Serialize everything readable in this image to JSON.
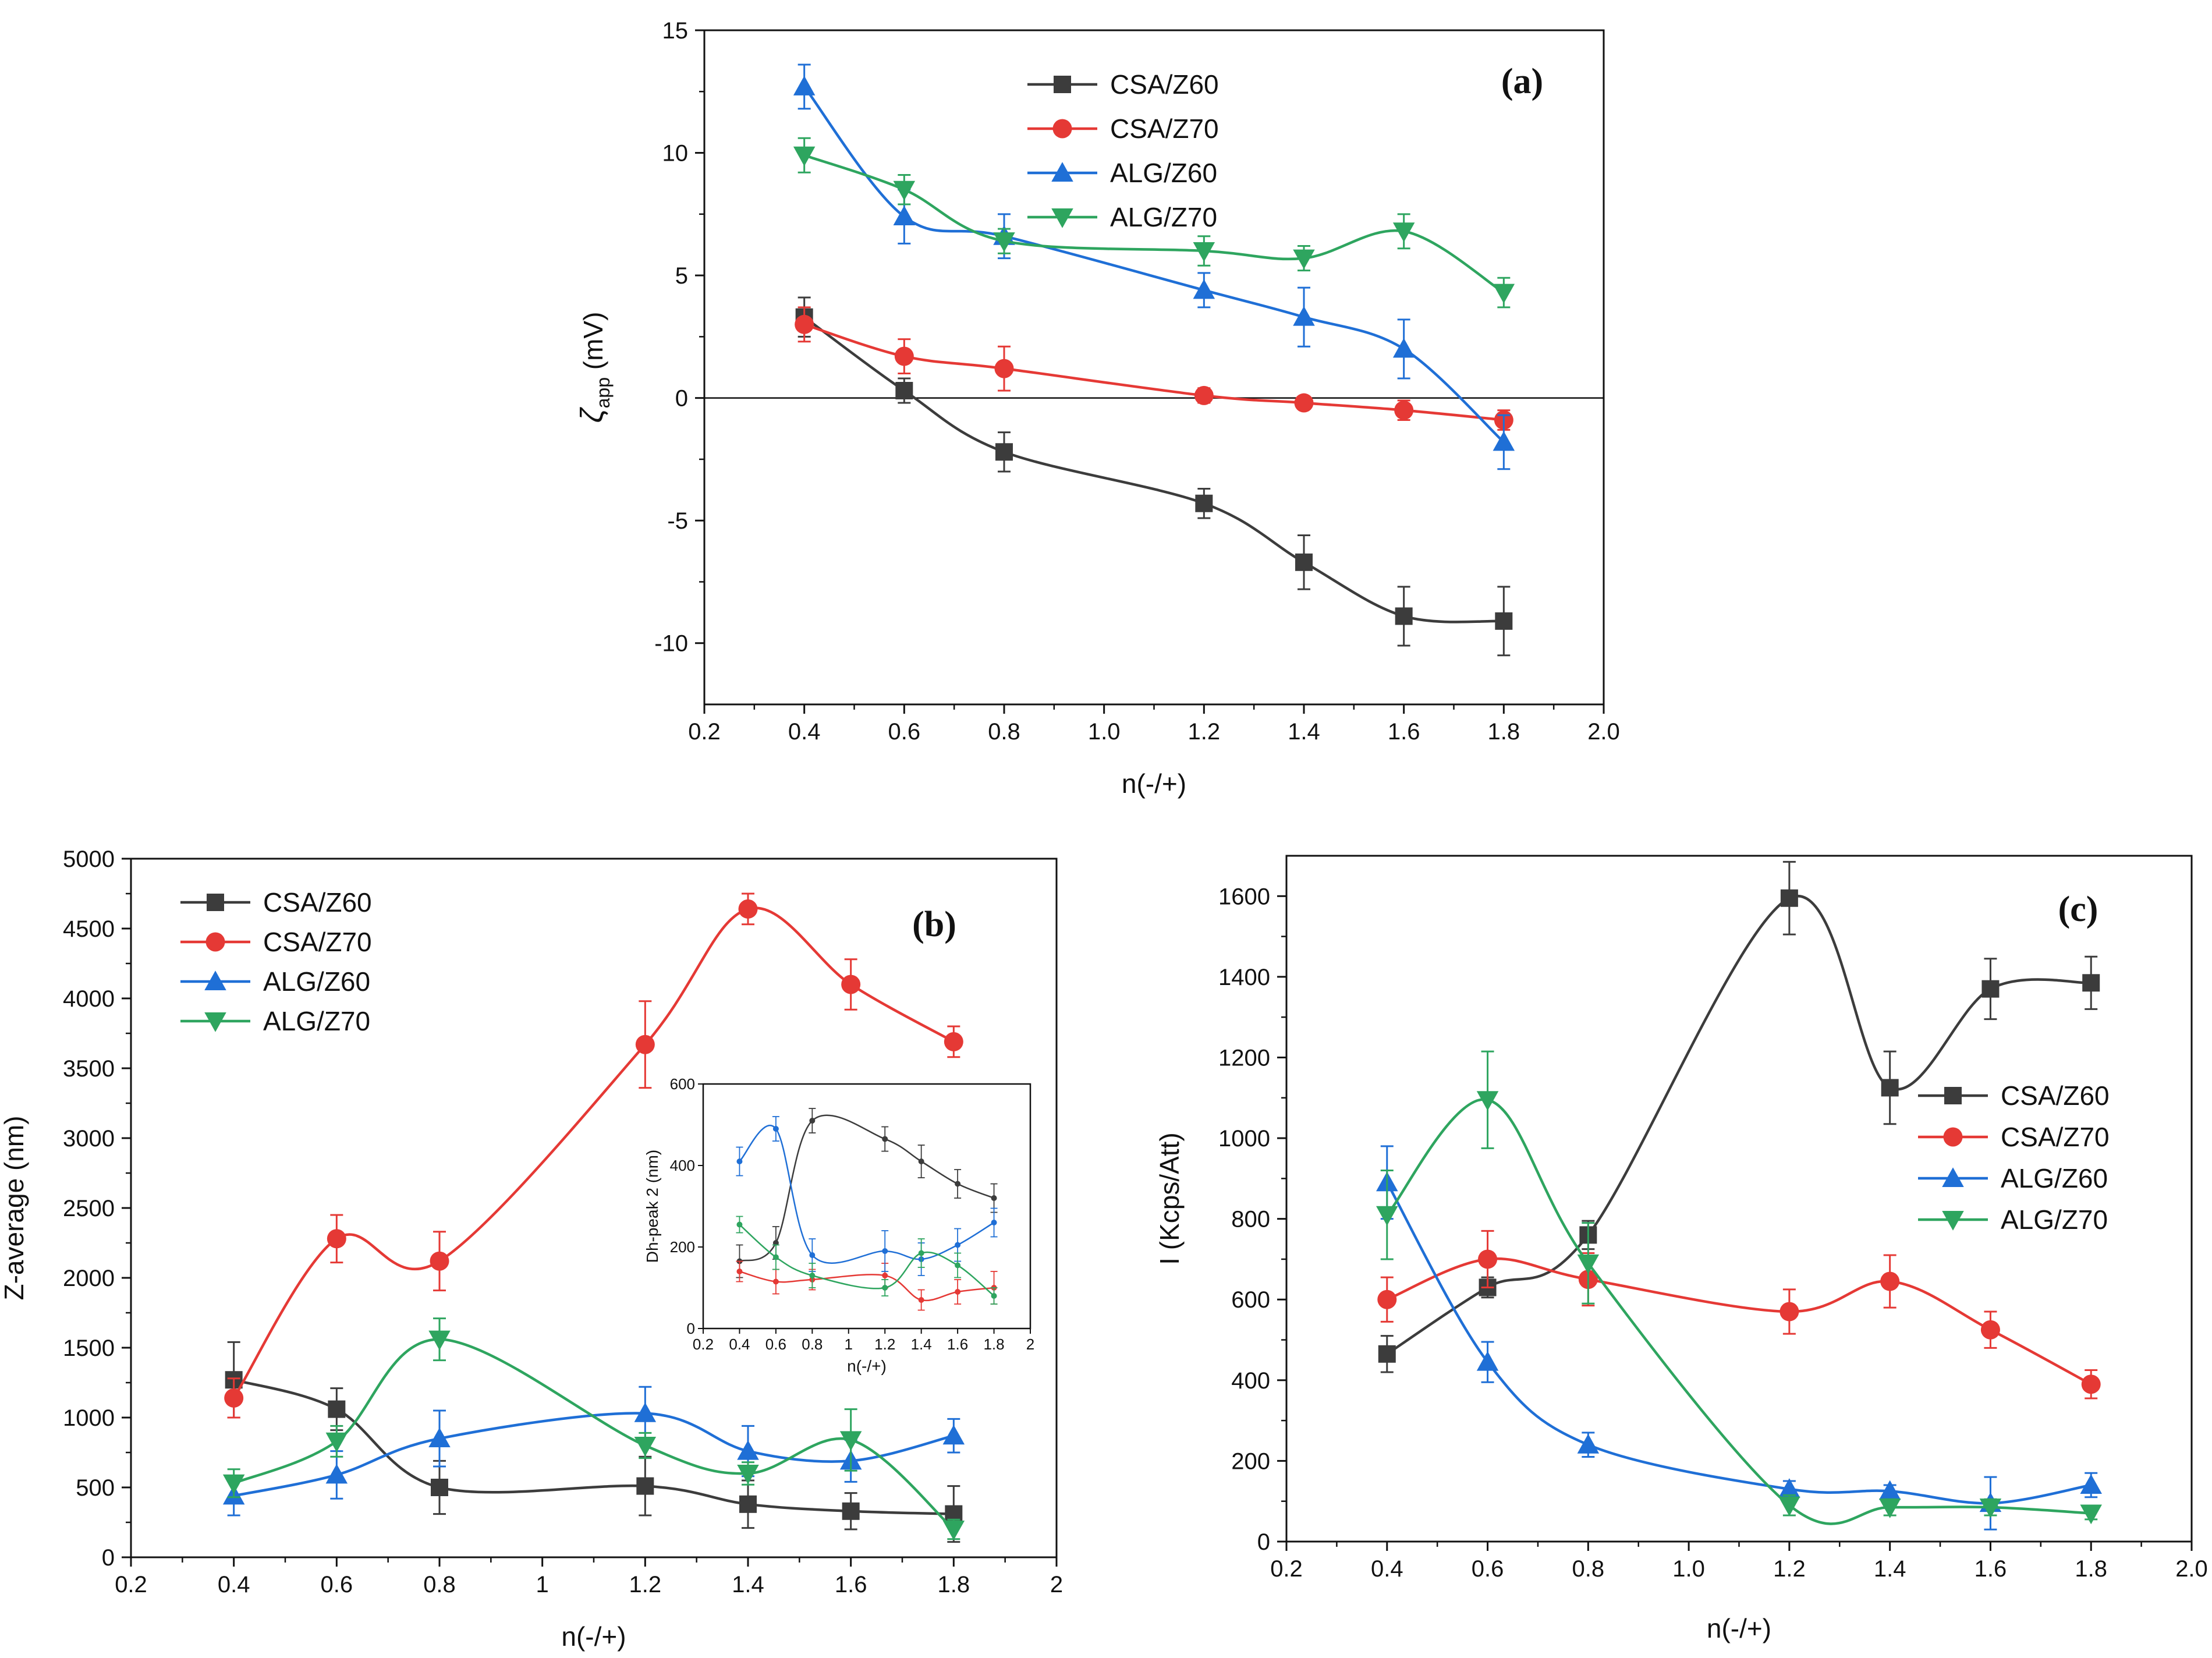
{
  "figure_colors": {
    "black": "#3c3c3c",
    "red": "#e53935",
    "blue": "#1f6fd6",
    "green": "#2ea55f"
  },
  "chart_data": [
    {
      "id": "a",
      "type": "line",
      "panel_label": "a",
      "xlabel": "n(-/+)",
      "ylabel_main": "ζ",
      "ylabel_sub": "app",
      "ylabel_unit": " (mV)",
      "xlim": [
        0.2,
        2.0
      ],
      "ylim": [
        -12.5,
        15
      ],
      "xticks": [
        0.2,
        0.4,
        0.6,
        0.8,
        1.0,
        1.2,
        1.4,
        1.6,
        1.8,
        2.0
      ],
      "xtick_labels": [
        "0.2",
        "0.4",
        "0.6",
        "0.8",
        "1.0",
        "1.2",
        "1.4",
        "1.6",
        "1.8",
        "2.0"
      ],
      "yticks": [
        -10,
        -5,
        0,
        5,
        10,
        15
      ],
      "ytick_labels": [
        "-10",
        "-5",
        "0",
        "5",
        "10",
        "15"
      ],
      "zero_line": true,
      "legend_position": "top-center",
      "x": [
        0.4,
        0.6,
        0.8,
        1.2,
        1.4,
        1.6,
        1.8
      ],
      "series": [
        {
          "name": "CSA/Z60",
          "marker": "square",
          "color": "#3c3c3c",
          "values": [
            3.3,
            0.3,
            -2.2,
            -4.3,
            -6.7,
            -8.9,
            -9.1
          ],
          "err": [
            0.8,
            0.5,
            0.8,
            0.6,
            1.1,
            1.2,
            1.4
          ]
        },
        {
          "name": "CSA/Z70",
          "marker": "circle",
          "color": "#e53935",
          "values": [
            3.0,
            1.7,
            1.2,
            0.1,
            -0.2,
            -0.5,
            -0.9
          ],
          "err": [
            0.7,
            0.7,
            0.9,
            0.3,
            0.2,
            0.4,
            0.4
          ]
        },
        {
          "name": "ALG/Z60",
          "marker": "triangle-up",
          "color": "#1f6fd6",
          "values": [
            12.7,
            7.4,
            6.6,
            4.4,
            3.3,
            2.0,
            -1.8
          ],
          "err": [
            0.9,
            1.1,
            0.9,
            0.7,
            1.2,
            1.2,
            1.1
          ]
        },
        {
          "name": "ALG/Z70",
          "marker": "triangle-down",
          "color": "#2ea55f",
          "values": [
            9.9,
            8.5,
            6.4,
            6.0,
            5.7,
            6.8,
            4.3
          ],
          "err": [
            0.7,
            0.6,
            0.5,
            0.6,
            0.5,
            0.7,
            0.6
          ]
        }
      ]
    },
    {
      "id": "b",
      "type": "line",
      "panel_label": "b",
      "xlabel": "n(-/+)",
      "ylabel": "Z-average (nm)",
      "xlim": [
        0.2,
        2.0
      ],
      "ylim": [
        0,
        5000
      ],
      "xticks": [
        0.2,
        0.4,
        0.6,
        0.8,
        1.0,
        1.2,
        1.4,
        1.6,
        1.8,
        2.0
      ],
      "xtick_labels": [
        "0.2",
        "0.4",
        "0.6",
        "0.8",
        "1",
        "1.2",
        "1.4",
        "1.6",
        "1.8",
        "2"
      ],
      "yticks": [
        0,
        500,
        1000,
        1500,
        2000,
        2500,
        3000,
        3500,
        4000,
        4500,
        5000
      ],
      "ytick_labels": [
        "0",
        "500",
        "1000",
        "1500",
        "2000",
        "2500",
        "3000",
        "3500",
        "4000",
        "4500",
        "5000"
      ],
      "legend_position": "top-left",
      "x": [
        0.4,
        0.6,
        0.8,
        1.2,
        1.4,
        1.6,
        1.8
      ],
      "series": [
        {
          "name": "CSA/Z60",
          "marker": "square",
          "color": "#3c3c3c",
          "values": [
            1270,
            1060,
            500,
            510,
            380,
            330,
            310
          ],
          "err": [
            270,
            150,
            190,
            210,
            170,
            130,
            200
          ]
        },
        {
          "name": "CSA/Z70",
          "marker": "circle",
          "color": "#e53935",
          "values": [
            1140,
            2280,
            2120,
            3670,
            4640,
            4100,
            3690
          ],
          "err": [
            140,
            170,
            210,
            310,
            110,
            180,
            110
          ]
        },
        {
          "name": "ALG/Z60",
          "marker": "triangle-up",
          "color": "#1f6fd6",
          "values": [
            440,
            590,
            850,
            1030,
            760,
            690,
            870
          ],
          "err": [
            140,
            170,
            200,
            190,
            180,
            150,
            120
          ]
        },
        {
          "name": "ALG/Z70",
          "marker": "triangle-down",
          "color": "#2ea55f",
          "values": [
            530,
            830,
            1560,
            800,
            600,
            840,
            200
          ],
          "err": [
            100,
            110,
            150,
            90,
            80,
            220,
            70
          ]
        }
      ],
      "inset": {
        "xlabel": "n(-/+)",
        "ylabel": "Dh-peak 2 (nm)",
        "xlim": [
          0.2,
          2.0
        ],
        "ylim": [
          0,
          600
        ],
        "xticks": [
          0.2,
          0.4,
          0.6,
          0.8,
          1.0,
          1.2,
          1.4,
          1.6,
          1.8,
          2.0
        ],
        "xtick_labels": [
          "0.2",
          "0.4",
          "0.6",
          "0.8",
          "1",
          "1.2",
          "1.4",
          "1.6",
          "1.8",
          "2"
        ],
        "yticks": [
          0,
          200,
          400,
          600
        ],
        "ytick_labels": [
          "0",
          "200",
          "400",
          "600"
        ],
        "x": [
          0.4,
          0.6,
          0.8,
          1.2,
          1.4,
          1.6,
          1.8
        ],
        "series": [
          {
            "name": "CSA/Z60",
            "color": "#3c3c3c",
            "values": [
              165,
              210,
              510,
              465,
              410,
              355,
              320
            ],
            "err": [
              40,
              40,
              30,
              30,
              40,
              35,
              35
            ]
          },
          {
            "name": "CSA/Z70",
            "color": "#e53935",
            "values": [
              140,
              115,
              120,
              130,
              70,
              90,
              100
            ],
            "err": [
              25,
              30,
              25,
              30,
              25,
              30,
              40
            ]
          },
          {
            "name": "ALG/Z60",
            "color": "#1f6fd6",
            "values": [
              410,
              490,
              180,
              190,
              170,
              205,
              260
            ],
            "err": [
              35,
              30,
              40,
              50,
              40,
              40,
              35
            ]
          },
          {
            "name": "ALG/Z70",
            "color": "#2ea55f",
            "values": [
              255,
              175,
              130,
              100,
              185,
              155,
              80
            ],
            "err": [
              20,
              30,
              30,
              20,
              35,
              30,
              20
            ]
          }
        ]
      }
    },
    {
      "id": "c",
      "type": "line",
      "panel_label": "c",
      "xlabel": "n(-/+)",
      "ylabel": "I (Kcps/Att)",
      "xlim": [
        0.2,
        2.0
      ],
      "ylim": [
        0,
        1700
      ],
      "xticks": [
        0.2,
        0.4,
        0.6,
        0.8,
        1.0,
        1.2,
        1.4,
        1.6,
        1.8,
        2.0
      ],
      "xtick_labels": [
        "0.2",
        "0.4",
        "0.6",
        "0.8",
        "1.0",
        "1.2",
        "1.4",
        "1.6",
        "1.8",
        "2.0"
      ],
      "yticks": [
        0,
        200,
        400,
        600,
        800,
        1000,
        1200,
        1400,
        1600
      ],
      "ytick_labels": [
        "0",
        "200",
        "400",
        "600",
        "800",
        "1000",
        "1200",
        "1400",
        "1600"
      ],
      "legend_position": "right",
      "x": [
        0.4,
        0.6,
        0.8,
        1.2,
        1.4,
        1.6,
        1.8
      ],
      "series": [
        {
          "name": "CSA/Z60",
          "marker": "square",
          "color": "#3c3c3c",
          "values": [
            465,
            630,
            760,
            1595,
            1125,
            1370,
            1385
          ],
          "err": [
            45,
            25,
            35,
            90,
            90,
            75,
            65
          ]
        },
        {
          "name": "CSA/Z70",
          "marker": "circle",
          "color": "#e53935",
          "values": [
            600,
            700,
            650,
            570,
            645,
            525,
            390
          ],
          "err": [
            55,
            70,
            65,
            55,
            65,
            45,
            35
          ]
        },
        {
          "name": "ALG/Z60",
          "marker": "triangle-up",
          "color": "#1f6fd6",
          "values": [
            890,
            445,
            240,
            130,
            125,
            95,
            140
          ],
          "err": [
            90,
            50,
            30,
            20,
            15,
            65,
            30
          ]
        },
        {
          "name": "ALG/Z70",
          "marker": "triangle-down",
          "color": "#2ea55f",
          "values": [
            810,
            1095,
            690,
            90,
            85,
            85,
            70
          ],
          "err": [
            110,
            120,
            100,
            25,
            20,
            20,
            15
          ]
        }
      ]
    }
  ]
}
